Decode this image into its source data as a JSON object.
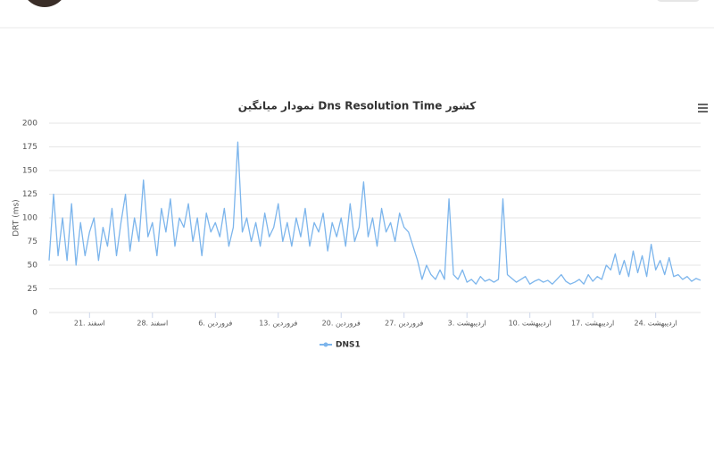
{
  "chart_data": {
    "type": "line",
    "title": "نمودار میانگین Dns Resolution Time کشور",
    "y_label": "DRT (ms)",
    "categories": [
      null,
      null,
      null,
      null,
      null,
      null,
      null,
      null,
      null,
      "21. اسفند",
      null,
      null,
      null,
      null,
      null,
      null,
      null,
      null,
      null,
      null,
      null,
      null,
      null,
      "28. اسفند",
      null,
      null,
      null,
      null,
      null,
      null,
      null,
      null,
      null,
      null,
      null,
      null,
      null,
      "6. فروردین",
      null,
      null,
      null,
      null,
      null,
      null,
      null,
      null,
      null,
      null,
      null,
      null,
      null,
      "13. فروردین",
      null,
      null,
      null,
      null,
      null,
      null,
      null,
      null,
      null,
      null,
      null,
      null,
      null,
      "20. فروردین",
      null,
      null,
      null,
      null,
      null,
      null,
      null,
      null,
      null,
      null,
      null,
      null,
      null,
      "27. فروردین",
      null,
      null,
      null,
      null,
      null,
      null,
      null,
      null,
      null,
      null,
      null,
      null,
      null,
      "3. اردیبهشت",
      null,
      null,
      null,
      null,
      null,
      null,
      null,
      null,
      null,
      null,
      null,
      null,
      null,
      "10. اردیبهشت",
      null,
      null,
      null,
      null,
      null,
      null,
      null,
      null,
      null,
      null,
      null,
      null,
      null,
      "17. اردیبهشت",
      null,
      null,
      null,
      null,
      null,
      null,
      null,
      null,
      null,
      null,
      null,
      null,
      null,
      "24. اردیبهشت",
      null,
      null,
      null,
      null,
      null,
      null,
      null,
      null,
      null,
      null
    ],
    "series": [
      {
        "name": "DNS1",
        "color": "#7cb5ec",
        "values": [
          55,
          125,
          60,
          100,
          55,
          115,
          50,
          95,
          60,
          85,
          100,
          55,
          90,
          70,
          110,
          60,
          95,
          125,
          65,
          100,
          75,
          140,
          80,
          95,
          60,
          110,
          85,
          120,
          70,
          100,
          90,
          115,
          75,
          100,
          60,
          105,
          85,
          95,
          80,
          110,
          70,
          90,
          180,
          85,
          100,
          75,
          95,
          70,
          105,
          80,
          90,
          115,
          75,
          95,
          70,
          100,
          80,
          110,
          70,
          95,
          85,
          105,
          65,
          95,
          80,
          100,
          70,
          115,
          75,
          90,
          138,
          80,
          100,
          70,
          110,
          85,
          95,
          75,
          105,
          90,
          85,
          70,
          55,
          35,
          50,
          40,
          35,
          45,
          35,
          120,
          40,
          35,
          45,
          32,
          35,
          30,
          38,
          33,
          35,
          32,
          35,
          120,
          40,
          36,
          32,
          35,
          38,
          30,
          33,
          35,
          32,
          34,
          30,
          35,
          40,
          33,
          30,
          32,
          35,
          30,
          40,
          33,
          38,
          35,
          50,
          45,
          62,
          40,
          55,
          38,
          65,
          42,
          60,
          38,
          72,
          45,
          55,
          40,
          58,
          38,
          40,
          35,
          38,
          33,
          36,
          34
        ]
      }
    ],
    "ylim": [
      0,
      200
    ],
    "yticks": [
      0,
      25,
      50,
      75,
      100,
      125,
      150,
      175,
      200
    ],
    "grid": true
  }
}
